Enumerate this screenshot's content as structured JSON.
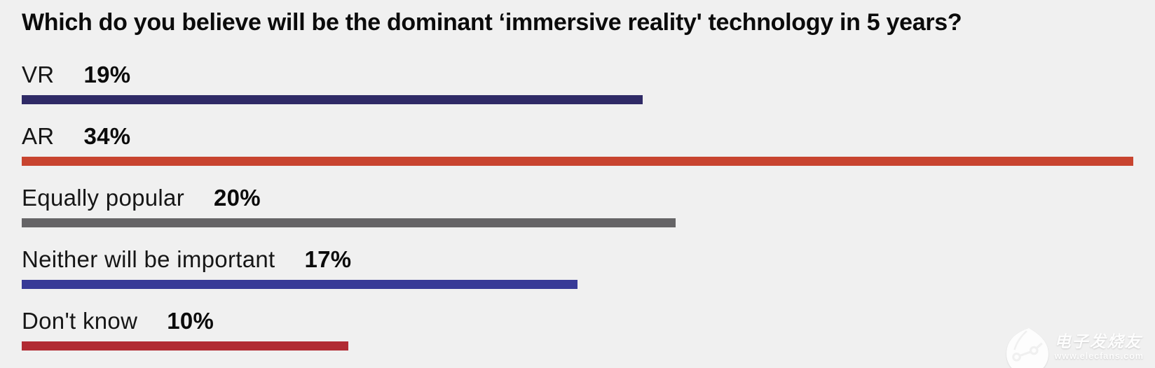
{
  "title": "Which do you believe will be the dominant ‘immersive reality' technology in 5 years?",
  "chart_data": {
    "type": "bar",
    "orientation": "horizontal",
    "categories": [
      "VR",
      "AR",
      "Equally popular",
      "Neither will be important",
      "Don't know"
    ],
    "values": [
      19,
      34,
      20,
      17,
      10
    ],
    "value_labels": [
      "19%",
      "34%",
      "20%",
      "17%",
      "10%"
    ],
    "bar_colors": [
      "#2f2a66",
      "#c8442f",
      "#656466",
      "#383a97",
      "#b12b33"
    ],
    "xlim": [
      0,
      34
    ],
    "grid": false,
    "legend": false,
    "value_label_position": "after-category-label"
  },
  "colors": {
    "background": "#f0f0f0",
    "title_text": "#0b0b0b",
    "label_text": "#161616"
  },
  "watermark": {
    "logo": "elecfans-flame-circuit-logo",
    "brand": "电子发烧友",
    "url": "www.elecfans.com"
  }
}
